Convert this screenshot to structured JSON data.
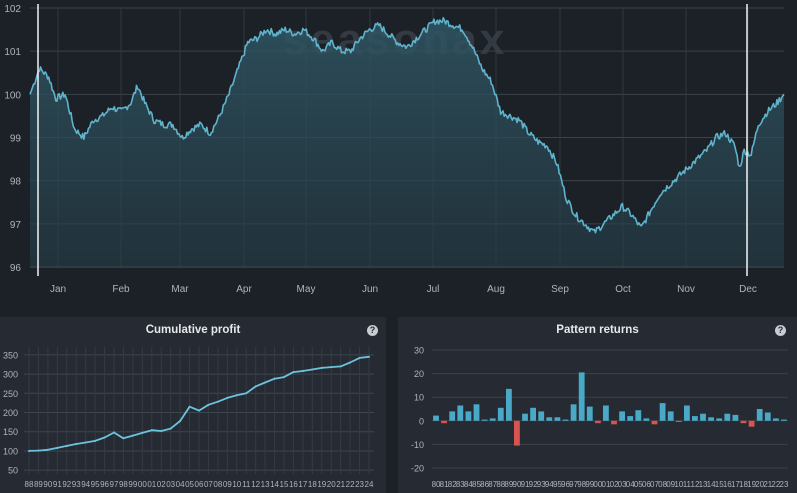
{
  "brand": {
    "watermark": "seasonax"
  },
  "colors": {
    "background": "#1c2127",
    "panel": "#262b33",
    "line": "#5fb3cc",
    "positive": "#4aa9c6",
    "negative": "#d9534f"
  },
  "main_chart": {
    "type": "area",
    "x_ticks": [
      "Jan",
      "Feb",
      "Mar",
      "Apr",
      "May",
      "Jun",
      "Jul",
      "Aug",
      "Sep",
      "Oct",
      "Nov",
      "Dec"
    ],
    "y_ticks": [
      "96",
      "97",
      "98",
      "99",
      "100",
      "101",
      "102"
    ],
    "ylim": [
      96,
      102
    ],
    "grid": true,
    "markers": [
      "start",
      "end"
    ],
    "keypoints": [
      [
        0,
        100.0
      ],
      [
        4,
        100.6
      ],
      [
        8,
        100.4
      ],
      [
        11,
        99.9
      ],
      [
        15,
        100.0
      ],
      [
        19,
        99.2
      ],
      [
        23,
        99.0
      ],
      [
        27,
        99.4
      ],
      [
        31,
        99.5
      ],
      [
        35,
        99.7
      ],
      [
        39,
        99.6
      ],
      [
        43,
        99.8
      ],
      [
        46,
        100.2
      ],
      [
        49,
        99.8
      ],
      [
        53,
        99.4
      ],
      [
        57,
        99.3
      ],
      [
        61,
        99.3
      ],
      [
        65,
        99.0
      ],
      [
        69,
        99.2
      ],
      [
        73,
        99.3
      ],
      [
        77,
        99.1
      ],
      [
        81,
        99.5
      ],
      [
        85,
        100.0
      ],
      [
        89,
        100.6
      ],
      [
        93,
        101.2
      ],
      [
        97,
        101.3
      ],
      [
        101,
        101.5
      ],
      [
        105,
        101.4
      ],
      [
        109,
        101.5
      ],
      [
        113,
        101.4
      ],
      [
        117,
        101.5
      ],
      [
        121,
        101.3
      ],
      [
        125,
        101.0
      ],
      [
        129,
        101.2
      ],
      [
        133,
        101.0
      ],
      [
        137,
        101.0
      ],
      [
        141,
        101.3
      ],
      [
        145,
        101.5
      ],
      [
        149,
        101.6
      ],
      [
        153,
        101.4
      ],
      [
        157,
        101.2
      ],
      [
        161,
        101.1
      ],
      [
        165,
        101.3
      ],
      [
        169,
        101.5
      ],
      [
        173,
        101.7
      ],
      [
        177,
        101.7
      ],
      [
        181,
        101.6
      ],
      [
        185,
        101.5
      ],
      [
        189,
        101.1
      ],
      [
        193,
        100.6
      ],
      [
        197,
        100.3
      ],
      [
        201,
        99.6
      ],
      [
        205,
        99.5
      ],
      [
        209,
        99.4
      ],
      [
        213,
        99.1
      ],
      [
        217,
        98.9
      ],
      [
        221,
        98.8
      ],
      [
        225,
        98.4
      ],
      [
        229,
        97.6
      ],
      [
        233,
        97.2
      ],
      [
        237,
        97.0
      ],
      [
        241,
        96.8
      ],
      [
        245,
        97.0
      ],
      [
        249,
        97.2
      ],
      [
        253,
        97.4
      ],
      [
        257,
        97.2
      ],
      [
        261,
        96.9
      ],
      [
        265,
        97.3
      ],
      [
        269,
        97.7
      ],
      [
        273,
        97.9
      ],
      [
        277,
        98.1
      ],
      [
        281,
        98.3
      ],
      [
        285,
        98.5
      ],
      [
        289,
        98.7
      ],
      [
        293,
        99.0
      ],
      [
        297,
        99.1
      ],
      [
        301,
        98.8
      ],
      [
        303,
        98.3
      ],
      [
        305,
        98.7
      ],
      [
        308,
        98.6
      ],
      [
        311,
        99.3
      ],
      [
        315,
        99.6
      ],
      [
        319,
        99.8
      ],
      [
        322,
        100.0
      ]
    ]
  },
  "cumulative": {
    "title": "Cumulative profit",
    "help": "?",
    "y_ticks": [
      "350",
      "300",
      "250",
      "200",
      "150",
      "100",
      "50"
    ],
    "ylim": [
      40,
      360
    ],
    "x_labels": [
      "88",
      "89",
      "90",
      "91",
      "92",
      "93",
      "94",
      "95",
      "96",
      "97",
      "98",
      "99",
      "00",
      "01",
      "02",
      "03",
      "04",
      "05",
      "06",
      "07",
      "08",
      "09",
      "10",
      "11",
      "12",
      "13",
      "14",
      "15",
      "16",
      "17",
      "18",
      "19",
      "20",
      "21",
      "22",
      "23",
      "24"
    ],
    "chart_data": {
      "type": "line",
      "x": [
        "88",
        "89",
        "90",
        "91",
        "92",
        "93",
        "94",
        "95",
        "96",
        "97",
        "98",
        "99",
        "00",
        "01",
        "02",
        "03",
        "04",
        "05",
        "06",
        "07",
        "08",
        "09",
        "10",
        "11",
        "12",
        "13",
        "14",
        "15",
        "16",
        "17",
        "18",
        "19",
        "20",
        "21",
        "22",
        "23",
        "24"
      ],
      "values": [
        100,
        101,
        103,
        108,
        113,
        118,
        122,
        126,
        135,
        148,
        133,
        140,
        147,
        154,
        152,
        158,
        178,
        215,
        205,
        220,
        228,
        238,
        245,
        250,
        268,
        278,
        288,
        292,
        305,
        308,
        312,
        316,
        318,
        320,
        330,
        342,
        345
      ]
    }
  },
  "pattern": {
    "title": "Pattern returns",
    "help": "?",
    "y_ticks": [
      "30",
      "20",
      "10",
      "0",
      "-10",
      "-20"
    ],
    "ylim": [
      -22,
      32
    ],
    "x_labels": [
      "80",
      "81",
      "82",
      "83",
      "84",
      "85",
      "86",
      "87",
      "88",
      "89",
      "90",
      "91",
      "92",
      "93",
      "94",
      "95",
      "96",
      "97",
      "98",
      "99",
      "00",
      "01",
      "02",
      "03",
      "04",
      "05",
      "06",
      "07",
      "08",
      "09",
      "10",
      "11",
      "12",
      "13",
      "14",
      "15",
      "16",
      "17",
      "18",
      "19",
      "20",
      "21",
      "22",
      "23"
    ],
    "chart_data": {
      "type": "bar",
      "categories": [
        "80",
        "81",
        "82",
        "83",
        "84",
        "85",
        "86",
        "87",
        "88",
        "89",
        "90",
        "91",
        "92",
        "93",
        "94",
        "95",
        "96",
        "97",
        "98",
        "99",
        "00",
        "01",
        "02",
        "03",
        "04",
        "05",
        "06",
        "07",
        "08",
        "09",
        "10",
        "11",
        "12",
        "13",
        "14",
        "15",
        "16",
        "17",
        "18",
        "19",
        "20",
        "21",
        "22",
        "23"
      ],
      "values": [
        2.2,
        -1.0,
        4.0,
        6.5,
        4.0,
        7.0,
        0.5,
        1.0,
        5.5,
        13.5,
        -10.5,
        3.0,
        5.5,
        4.0,
        1.5,
        1.5,
        0.5,
        7.0,
        20.5,
        6.0,
        -1.0,
        6.5,
        -1.5,
        4.0,
        2.0,
        4.5,
        1.0,
        -1.5,
        7.5,
        4.0,
        -0.5,
        6.5,
        2.0,
        3.0,
        1.5,
        1.0,
        3.0,
        2.5,
        -1.0,
        -2.5,
        5.0,
        3.5,
        1.0,
        0.5
      ]
    }
  }
}
